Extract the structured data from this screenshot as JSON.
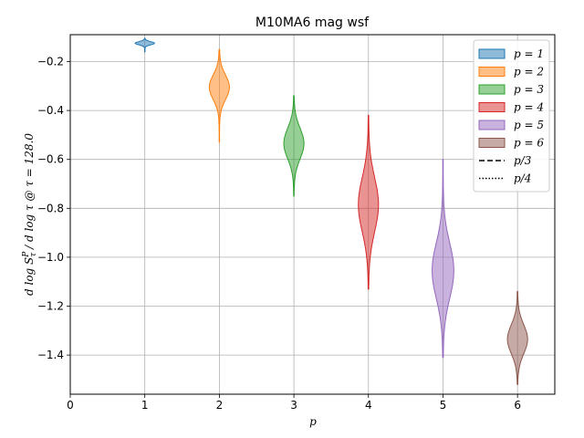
{
  "chart_data": {
    "type": "violin",
    "title": "M10MA6 mag wsf",
    "xlabel": "p",
    "ylabel": "d log S_τ^P / d log τ @ τ = 128.0",
    "xlim": [
      0,
      6.5
    ],
    "ylim": [
      -1.56,
      -0.09
    ],
    "x_ticks": [
      0,
      1,
      2,
      3,
      4,
      5,
      6
    ],
    "y_ticks": [
      -0.2,
      -0.4,
      -0.6,
      -0.8,
      -1.0,
      -1.2,
      -1.4
    ],
    "y_tick_labels": [
      "−0.2",
      "−0.4",
      "−0.6",
      "−0.8",
      "−1.0",
      "−1.2",
      "−1.4"
    ],
    "grid": true,
    "legend_position": "top-right",
    "series": [
      {
        "name": "p = 1",
        "p": 1,
        "median": -0.125,
        "min": -0.16,
        "max": -0.105,
        "color": "#1f77b4",
        "width": 0.25
      },
      {
        "name": "p = 2",
        "p": 2,
        "median": -0.305,
        "min": -0.53,
        "max": -0.15,
        "color": "#ff7f0e",
        "width": 0.26
      },
      {
        "name": "p = 3",
        "p": 3,
        "median": -0.535,
        "min": -0.75,
        "max": -0.34,
        "color": "#2ca02c",
        "width": 0.26
      },
      {
        "name": "p = 4",
        "p": 4,
        "median": -0.785,
        "min": -1.13,
        "max": -0.42,
        "color": "#d62728",
        "width": 0.26
      },
      {
        "name": "p = 5",
        "p": 5,
        "median": -1.055,
        "min": -1.41,
        "max": -0.6,
        "color": "#9467bd",
        "width": 0.28
      },
      {
        "name": "p = 6",
        "p": 6,
        "median": -1.335,
        "min": -1.52,
        "max": -1.14,
        "color": "#8c564b",
        "width": 0.26
      }
    ],
    "legend_lines": [
      {
        "label": "p/3",
        "style": "dashed"
      },
      {
        "label": "p/4",
        "style": "dotted"
      }
    ]
  }
}
